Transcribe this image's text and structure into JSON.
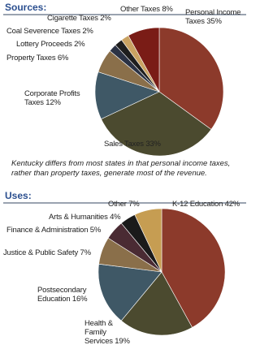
{
  "chart_data": [
    {
      "type": "pie",
      "title": "Sources:",
      "categories": [
        "Personal Income Taxes",
        "Sales Taxes",
        "Corporate Profits Taxes",
        "Property Taxes",
        "Lottery Proceeds",
        "Coal Severence Taxes",
        "Cigarette Taxes",
        "Other Taxes"
      ],
      "values": [
        35,
        33,
        12,
        6,
        2,
        2,
        2,
        8
      ],
      "value_labels": [
        "35%",
        "33%",
        "12%",
        "6%",
        "2%",
        "2%",
        "2%",
        "8%"
      ],
      "colors": [
        "#8c3a2b",
        "#4b4a2f",
        "#3f5866",
        "#8a6f4a",
        "#2b3244",
        "#1e1e1e",
        "#c9a262",
        "#7a1c16"
      ],
      "annotation": "Kentucky differs from most states in that personal income taxes, rather than property taxes, generate most of the revenue."
    },
    {
      "type": "pie",
      "title": "Uses:",
      "categories": [
        "K-12 Education",
        "Health & Family Services",
        "Postsecondary Education",
        "Justice & Public Safety",
        "Finance & Administration",
        "Arts & Humanities",
        "Other"
      ],
      "values": [
        42,
        19,
        16,
        7,
        5,
        4,
        7
      ],
      "value_labels": [
        "42%",
        "19%",
        "16%",
        "7%",
        "5%",
        "4%",
        "7%"
      ],
      "colors": [
        "#8c3a2b",
        "#4b4a2f",
        "#3f5866",
        "#8a6f4a",
        "#4a2b33",
        "#1a1a1a",
        "#c69d52"
      ]
    }
  ]
}
